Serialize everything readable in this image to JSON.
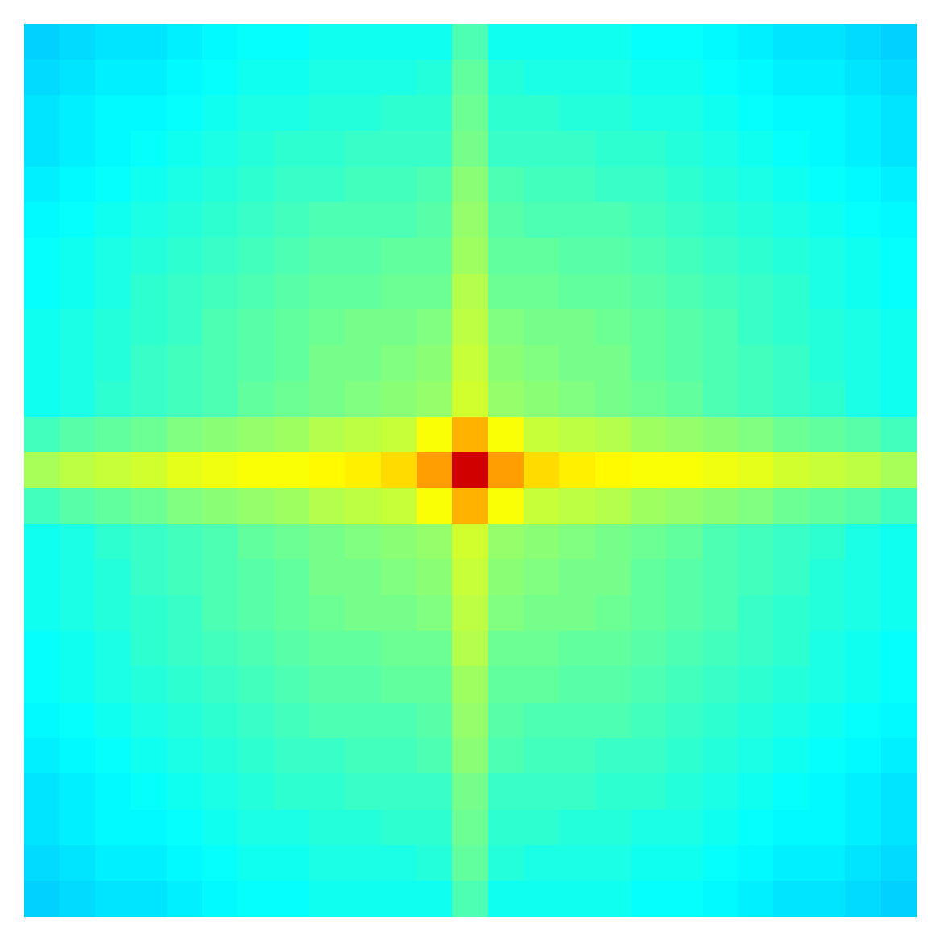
{
  "chart_data": {
    "type": "heatmap",
    "tick_labels": false,
    "color_range": [
      0,
      1
    ],
    "cells": [
      [
        0.33,
        0.34,
        0.35,
        0.35,
        0.36,
        0.37,
        0.38,
        0.38,
        0.39,
        0.39,
        0.39,
        0.39,
        0.45,
        0.39,
        0.39,
        0.39,
        0.39,
        0.38,
        0.38,
        0.37,
        0.36,
        0.35,
        0.35,
        0.34,
        0.33
      ],
      [
        0.34,
        0.35,
        0.36,
        0.36,
        0.37,
        0.38,
        0.39,
        0.39,
        0.4,
        0.4,
        0.4,
        0.41,
        0.47,
        0.41,
        0.4,
        0.4,
        0.4,
        0.39,
        0.39,
        0.38,
        0.37,
        0.36,
        0.36,
        0.35,
        0.34
      ],
      [
        0.35,
        0.36,
        0.37,
        0.37,
        0.38,
        0.39,
        0.4,
        0.4,
        0.41,
        0.41,
        0.42,
        0.42,
        0.48,
        0.42,
        0.42,
        0.41,
        0.41,
        0.4,
        0.4,
        0.39,
        0.38,
        0.37,
        0.37,
        0.36,
        0.35
      ],
      [
        0.35,
        0.36,
        0.37,
        0.38,
        0.39,
        0.4,
        0.41,
        0.42,
        0.42,
        0.43,
        0.43,
        0.43,
        0.49,
        0.43,
        0.43,
        0.43,
        0.42,
        0.42,
        0.41,
        0.4,
        0.39,
        0.38,
        0.37,
        0.36,
        0.35
      ],
      [
        0.36,
        0.37,
        0.38,
        0.39,
        0.4,
        0.41,
        0.42,
        0.43,
        0.43,
        0.44,
        0.44,
        0.45,
        0.51,
        0.45,
        0.44,
        0.44,
        0.43,
        0.43,
        0.42,
        0.41,
        0.4,
        0.39,
        0.38,
        0.37,
        0.36
      ],
      [
        0.37,
        0.38,
        0.39,
        0.4,
        0.41,
        0.42,
        0.43,
        0.44,
        0.45,
        0.45,
        0.45,
        0.46,
        0.52,
        0.46,
        0.45,
        0.45,
        0.45,
        0.44,
        0.43,
        0.42,
        0.41,
        0.4,
        0.39,
        0.38,
        0.37
      ],
      [
        0.38,
        0.39,
        0.4,
        0.41,
        0.42,
        0.43,
        0.44,
        0.45,
        0.46,
        0.46,
        0.47,
        0.47,
        0.53,
        0.47,
        0.47,
        0.46,
        0.46,
        0.45,
        0.44,
        0.43,
        0.42,
        0.41,
        0.4,
        0.39,
        0.38
      ],
      [
        0.38,
        0.39,
        0.4,
        0.42,
        0.43,
        0.44,
        0.45,
        0.46,
        0.47,
        0.47,
        0.48,
        0.48,
        0.55,
        0.48,
        0.48,
        0.47,
        0.47,
        0.46,
        0.45,
        0.44,
        0.43,
        0.42,
        0.4,
        0.39,
        0.38
      ],
      [
        0.39,
        0.4,
        0.41,
        0.42,
        0.43,
        0.45,
        0.46,
        0.47,
        0.48,
        0.49,
        0.49,
        0.5,
        0.56,
        0.5,
        0.49,
        0.49,
        0.48,
        0.47,
        0.46,
        0.45,
        0.43,
        0.42,
        0.41,
        0.4,
        0.39
      ],
      [
        0.39,
        0.4,
        0.41,
        0.43,
        0.44,
        0.45,
        0.46,
        0.47,
        0.49,
        0.49,
        0.5,
        0.51,
        0.57,
        0.51,
        0.5,
        0.49,
        0.49,
        0.47,
        0.46,
        0.45,
        0.44,
        0.43,
        0.41,
        0.4,
        0.39
      ],
      [
        0.39,
        0.4,
        0.42,
        0.43,
        0.44,
        0.45,
        0.47,
        0.48,
        0.49,
        0.5,
        0.51,
        0.52,
        0.58,
        0.52,
        0.51,
        0.5,
        0.49,
        0.48,
        0.47,
        0.45,
        0.44,
        0.43,
        0.42,
        0.4,
        0.39
      ],
      [
        0.44,
        0.46,
        0.47,
        0.48,
        0.5,
        0.51,
        0.52,
        0.53,
        0.55,
        0.56,
        0.57,
        0.62,
        0.7,
        0.62,
        0.57,
        0.56,
        0.55,
        0.53,
        0.52,
        0.51,
        0.5,
        0.48,
        0.47,
        0.46,
        0.44
      ],
      [
        0.54,
        0.56,
        0.57,
        0.58,
        0.6,
        0.61,
        0.62,
        0.62,
        0.63,
        0.64,
        0.66,
        0.72,
        0.92,
        0.72,
        0.66,
        0.64,
        0.63,
        0.62,
        0.62,
        0.61,
        0.6,
        0.58,
        0.57,
        0.56,
        0.54
      ],
      [
        0.44,
        0.46,
        0.47,
        0.48,
        0.5,
        0.51,
        0.52,
        0.53,
        0.55,
        0.56,
        0.57,
        0.62,
        0.7,
        0.62,
        0.57,
        0.56,
        0.55,
        0.53,
        0.52,
        0.51,
        0.5,
        0.48,
        0.47,
        0.46,
        0.44
      ],
      [
        0.39,
        0.4,
        0.42,
        0.43,
        0.44,
        0.45,
        0.47,
        0.48,
        0.49,
        0.5,
        0.51,
        0.52,
        0.58,
        0.52,
        0.51,
        0.5,
        0.49,
        0.48,
        0.47,
        0.45,
        0.44,
        0.43,
        0.42,
        0.4,
        0.39
      ],
      [
        0.39,
        0.4,
        0.41,
        0.43,
        0.44,
        0.45,
        0.46,
        0.47,
        0.49,
        0.49,
        0.5,
        0.51,
        0.57,
        0.51,
        0.5,
        0.49,
        0.49,
        0.47,
        0.46,
        0.45,
        0.44,
        0.43,
        0.41,
        0.4,
        0.39
      ],
      [
        0.39,
        0.4,
        0.41,
        0.42,
        0.43,
        0.45,
        0.46,
        0.47,
        0.48,
        0.49,
        0.49,
        0.5,
        0.56,
        0.5,
        0.49,
        0.49,
        0.48,
        0.47,
        0.46,
        0.45,
        0.43,
        0.42,
        0.41,
        0.4,
        0.39
      ],
      [
        0.38,
        0.39,
        0.4,
        0.42,
        0.43,
        0.44,
        0.45,
        0.46,
        0.47,
        0.47,
        0.48,
        0.48,
        0.55,
        0.48,
        0.48,
        0.47,
        0.47,
        0.46,
        0.45,
        0.44,
        0.43,
        0.42,
        0.4,
        0.39,
        0.38
      ],
      [
        0.38,
        0.39,
        0.4,
        0.41,
        0.42,
        0.43,
        0.44,
        0.45,
        0.46,
        0.46,
        0.47,
        0.47,
        0.53,
        0.47,
        0.47,
        0.46,
        0.46,
        0.45,
        0.44,
        0.43,
        0.42,
        0.41,
        0.4,
        0.39,
        0.38
      ],
      [
        0.37,
        0.38,
        0.39,
        0.4,
        0.41,
        0.42,
        0.43,
        0.44,
        0.45,
        0.45,
        0.45,
        0.46,
        0.52,
        0.46,
        0.45,
        0.45,
        0.45,
        0.44,
        0.43,
        0.42,
        0.41,
        0.4,
        0.39,
        0.38,
        0.37
      ],
      [
        0.36,
        0.37,
        0.38,
        0.39,
        0.4,
        0.41,
        0.42,
        0.43,
        0.43,
        0.44,
        0.44,
        0.45,
        0.51,
        0.45,
        0.44,
        0.44,
        0.43,
        0.43,
        0.42,
        0.41,
        0.4,
        0.39,
        0.38,
        0.37,
        0.36
      ],
      [
        0.35,
        0.36,
        0.37,
        0.38,
        0.39,
        0.4,
        0.41,
        0.42,
        0.42,
        0.43,
        0.43,
        0.43,
        0.49,
        0.43,
        0.43,
        0.43,
        0.42,
        0.42,
        0.41,
        0.4,
        0.39,
        0.38,
        0.37,
        0.36,
        0.35
      ],
      [
        0.35,
        0.36,
        0.37,
        0.37,
        0.38,
        0.39,
        0.4,
        0.4,
        0.41,
        0.41,
        0.42,
        0.42,
        0.48,
        0.42,
        0.42,
        0.41,
        0.41,
        0.4,
        0.4,
        0.39,
        0.38,
        0.37,
        0.37,
        0.36,
        0.35
      ],
      [
        0.34,
        0.35,
        0.36,
        0.36,
        0.37,
        0.38,
        0.39,
        0.39,
        0.4,
        0.4,
        0.4,
        0.41,
        0.47,
        0.41,
        0.4,
        0.4,
        0.4,
        0.39,
        0.39,
        0.38,
        0.37,
        0.36,
        0.36,
        0.35,
        0.34
      ],
      [
        0.33,
        0.34,
        0.35,
        0.35,
        0.36,
        0.37,
        0.38,
        0.38,
        0.39,
        0.39,
        0.39,
        0.39,
        0.45,
        0.39,
        0.39,
        0.39,
        0.39,
        0.38,
        0.38,
        0.37,
        0.36,
        0.35,
        0.35,
        0.34,
        0.33
      ]
    ]
  }
}
